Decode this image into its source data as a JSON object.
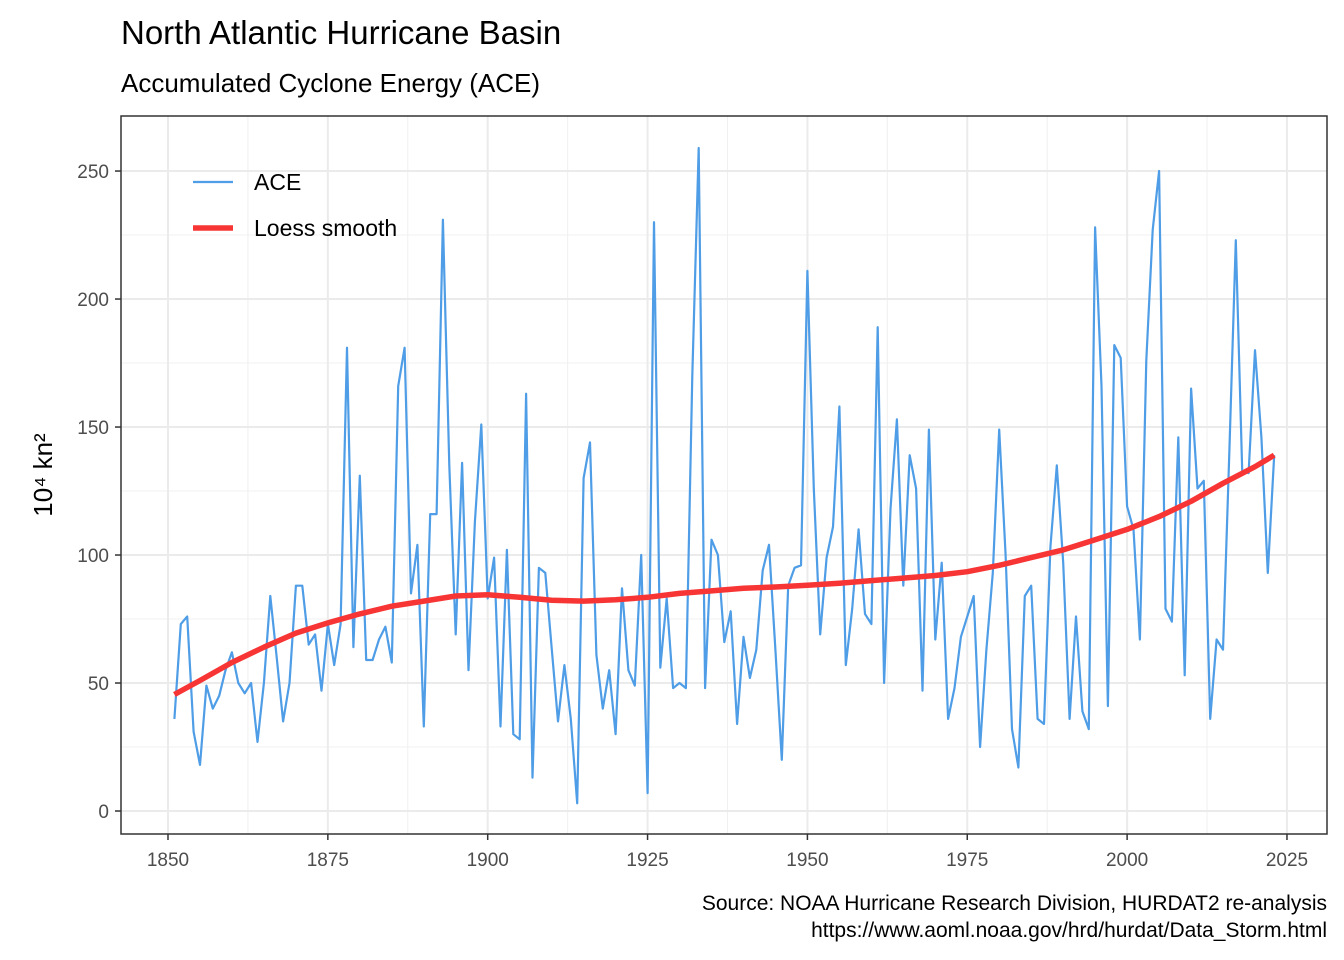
{
  "chart_data": {
    "type": "line",
    "title": "North Atlantic Hurricane Basin",
    "subtitle": "Accumulated Cyclone Energy (ACE)",
    "y_label": "10⁴ kn²",
    "caption": [
      "Source: NOAA Hurricane Research Division, HURDAT2 re-analysis",
      "https://www.aoml.noaa.gov/hrd/hurdat/Data_Storm.html"
    ],
    "xlim": [
      1842.65,
      2031.26
    ],
    "xticks": [
      1850,
      1875,
      1900,
      1925,
      1950,
      1975,
      2000,
      2025
    ],
    "ylim": [
      -8.98,
      271.5
    ],
    "yticks": [
      0,
      50,
      100,
      150,
      200,
      250
    ],
    "grid": true,
    "legend": "top-left",
    "series": [
      {
        "name": "ACE",
        "color": "#4e9de6",
        "x": [
          1851,
          1852,
          1853,
          1854,
          1855,
          1856,
          1857,
          1858,
          1859,
          1860,
          1861,
          1862,
          1863,
          1864,
          1865,
          1866,
          1867,
          1868,
          1869,
          1870,
          1871,
          1872,
          1873,
          1874,
          1875,
          1876,
          1877,
          1878,
          1879,
          1880,
          1881,
          1882,
          1883,
          1884,
          1885,
          1886,
          1887,
          1888,
          1889,
          1890,
          1891,
          1892,
          1893,
          1894,
          1895,
          1896,
          1897,
          1898,
          1899,
          1900,
          1901,
          1902,
          1903,
          1904,
          1905,
          1906,
          1907,
          1908,
          1909,
          1910,
          1911,
          1912,
          1913,
          1914,
          1915,
          1916,
          1917,
          1918,
          1919,
          1920,
          1921,
          1922,
          1923,
          1924,
          1925,
          1926,
          1927,
          1928,
          1929,
          1930,
          1931,
          1932,
          1933,
          1934,
          1935,
          1936,
          1937,
          1938,
          1939,
          1940,
          1941,
          1942,
          1943,
          1944,
          1945,
          1946,
          1947,
          1948,
          1949,
          1950,
          1951,
          1952,
          1953,
          1954,
          1955,
          1956,
          1957,
          1958,
          1959,
          1960,
          1961,
          1962,
          1963,
          1964,
          1965,
          1966,
          1967,
          1968,
          1969,
          1970,
          1971,
          1972,
          1973,
          1974,
          1975,
          1976,
          1977,
          1978,
          1979,
          1980,
          1981,
          1982,
          1983,
          1984,
          1985,
          1986,
          1987,
          1988,
          1989,
          1990,
          1991,
          1992,
          1993,
          1994,
          1995,
          1996,
          1997,
          1998,
          1999,
          2000,
          2001,
          2002,
          2003,
          2004,
          2005,
          2006,
          2007,
          2008,
          2009,
          2010,
          2011,
          2012,
          2013,
          2014,
          2015,
          2016,
          2017,
          2018,
          2019,
          2020,
          2021,
          2022,
          2023
        ],
        "values": [
          36,
          73,
          76,
          31,
          18,
          49,
          40,
          45,
          55,
          62,
          50,
          46,
          50,
          27,
          50,
          84,
          60,
          35,
          50,
          88,
          88,
          65,
          69,
          47,
          73,
          57,
          73,
          181,
          64,
          131,
          59,
          59,
          67,
          72,
          58,
          166,
          181,
          85,
          104,
          33,
          116,
          116,
          231,
          135,
          69,
          136,
          55,
          113,
          151,
          83,
          99,
          33,
          102,
          30,
          28,
          163,
          13,
          95,
          93,
          64,
          35,
          57,
          36,
          3,
          130,
          144,
          61,
          40,
          55,
          30,
          87,
          55,
          49,
          100,
          7,
          230,
          56,
          83,
          48,
          50,
          48,
          170,
          259,
          48,
          106,
          100,
          66,
          78,
          34,
          68,
          52,
          63,
          94,
          104,
          63,
          20,
          88,
          95,
          96,
          211,
          126,
          69,
          99,
          111,
          158,
          57,
          79,
          110,
          77,
          73,
          189,
          50,
          118,
          153,
          88,
          139,
          126,
          47,
          149,
          67,
          97,
          36,
          48,
          68,
          76,
          84,
          25,
          63,
          93,
          149,
          100,
          32,
          17,
          84,
          88,
          36,
          34,
          103,
          135,
          97,
          36,
          76,
          39,
          32,
          228,
          166,
          41,
          182,
          177,
          119,
          110,
          67,
          176,
          227,
          250,
          79,
          74,
          146,
          53,
          165,
          126,
          129,
          36,
          67,
          63,
          141,
          223,
          133,
          132,
          180,
          146,
          93,
          139
        ]
      },
      {
        "name": "Loess smooth",
        "color": "#f83535",
        "x": [
          1851,
          1855,
          1860,
          1865,
          1870,
          1875,
          1880,
          1885,
          1890,
          1895,
          1900,
          1905,
          1910,
          1915,
          1920,
          1925,
          1930,
          1935,
          1940,
          1945,
          1950,
          1955,
          1960,
          1965,
          1970,
          1975,
          1980,
          1985,
          1990,
          1995,
          2000,
          2005,
          2010,
          2015,
          2020,
          2023
        ],
        "values": [
          45.5,
          51,
          58,
          64,
          69.5,
          73.5,
          77,
          80,
          82,
          84,
          84.5,
          83.5,
          82.3,
          82,
          82.5,
          83.5,
          85,
          86,
          87,
          87.5,
          88.2,
          89,
          90,
          91,
          92,
          93.5,
          96,
          99,
          102,
          106,
          110,
          115,
          121,
          128,
          134.5,
          139
        ]
      }
    ]
  }
}
